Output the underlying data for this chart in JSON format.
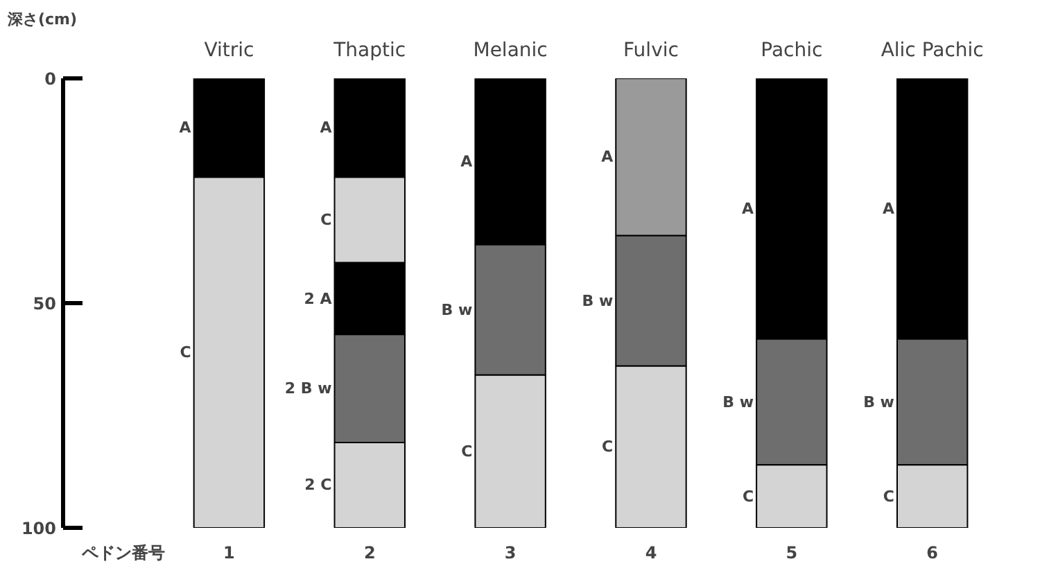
{
  "chart_data": {
    "type": "bar",
    "stacked": true,
    "ylabel": "深さ(cm)",
    "xlabel": "ペドン番号",
    "categories": [
      "1",
      "2",
      "3",
      "4",
      "5",
      "6"
    ],
    "ylim": [
      100,
      0
    ],
    "yticks": [
      0,
      50,
      100
    ],
    "grid": false,
    "series": [
      {
        "values": [
          22,
          22,
          37,
          35,
          58,
          58
        ],
        "colors": [
          "#000000",
          "#000000",
          "#000000",
          "#9a9a9a",
          "#000000",
          "#000000"
        ]
      },
      {
        "values": [
          78,
          19,
          29,
          29,
          28,
          28
        ],
        "colors": [
          "#d4d4d4",
          "#d4d4d4",
          "#6e6e6e",
          "#6e6e6e",
          "#6e6e6e",
          "#6e6e6e"
        ]
      },
      {
        "values": [
          null,
          16,
          34,
          36,
          14,
          14
        ],
        "colors": [
          null,
          "#000000",
          "#d4d4d4",
          "#d4d4d4",
          "#d4d4d4",
          "#d4d4d4"
        ]
      },
      {
        "values": [
          null,
          24,
          null,
          null,
          null,
          null
        ],
        "colors": [
          null,
          "#6e6e6e",
          null,
          null,
          null,
          null
        ]
      },
      {
        "values": [
          null,
          19,
          null,
          null,
          null,
          null
        ],
        "colors": [
          null,
          "#d4d4d4",
          null,
          null,
          null,
          null
        ]
      }
    ],
    "annotations": [
      "Vitric",
      "Thaptic",
      "Melanic",
      "Fulvic",
      "Pachic",
      "Alic Pachic",
      "A",
      "C",
      "A",
      "C",
      "2 A",
      "2 B w",
      "2 C",
      "A",
      "B w",
      "C",
      "A",
      "B w",
      "C",
      "A",
      "B w",
      "C",
      "A",
      "B w",
      "C"
    ]
  }
}
